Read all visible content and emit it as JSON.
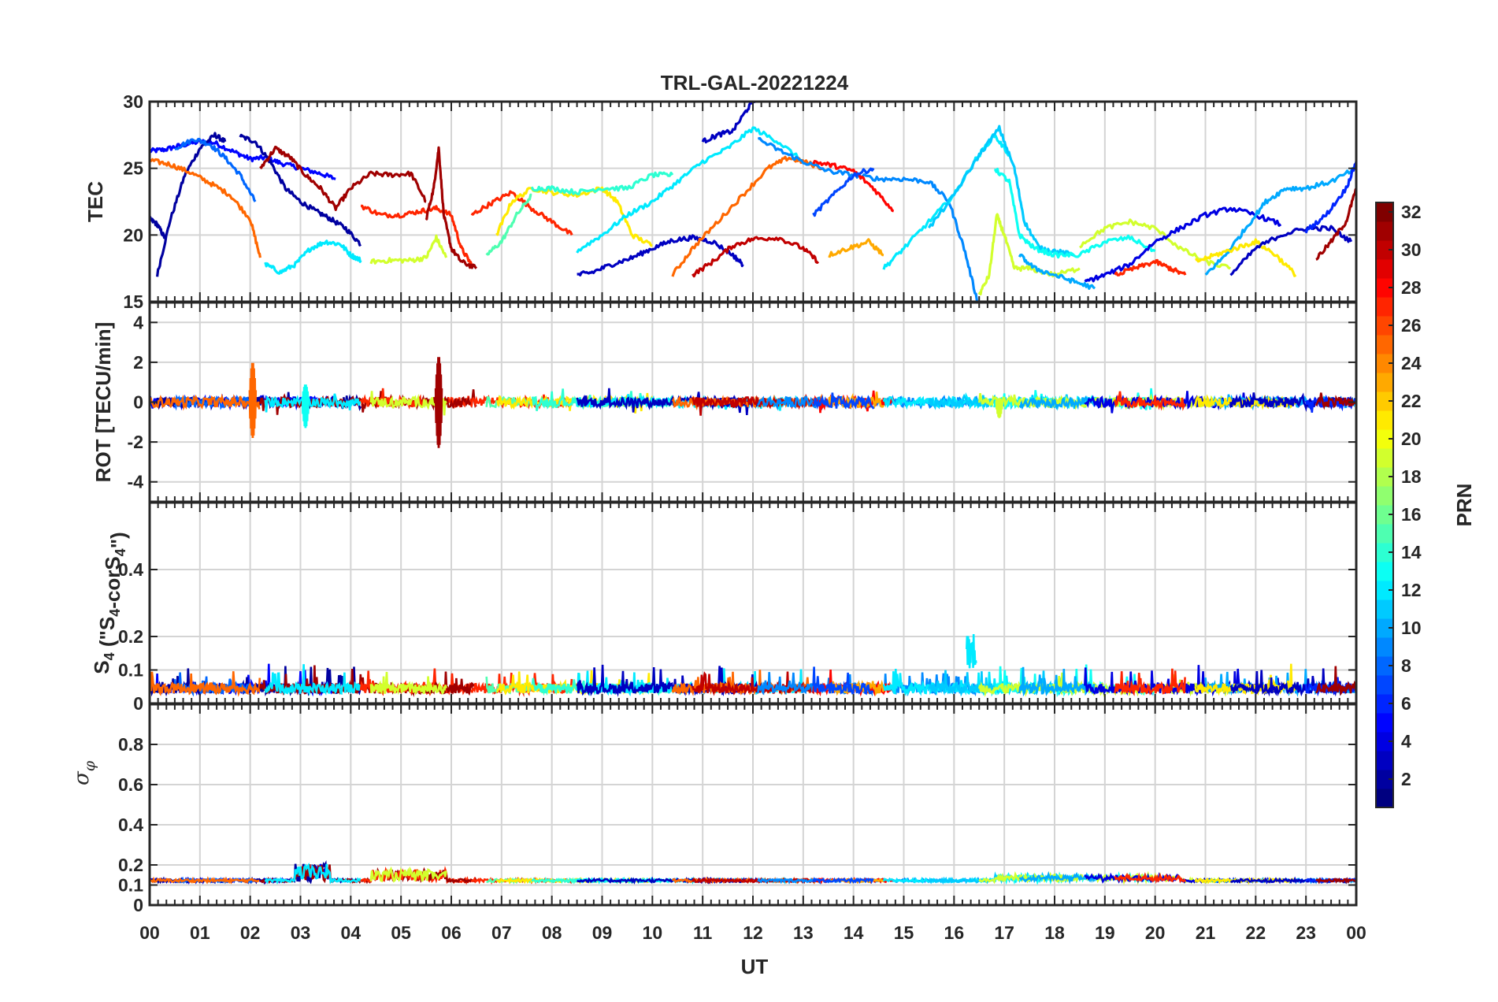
{
  "chart_data": {
    "type": "line",
    "title": "TRL-GAL-20221224",
    "xlabel": "UT",
    "x_ticks": [
      "00",
      "01",
      "02",
      "03",
      "04",
      "05",
      "06",
      "07",
      "08",
      "09",
      "10",
      "11",
      "12",
      "13",
      "14",
      "15",
      "16",
      "17",
      "18",
      "19",
      "20",
      "21",
      "22",
      "23",
      "00"
    ],
    "xlim": [
      0,
      24
    ],
    "colorbar": {
      "label": "PRN",
      "range": [
        1,
        32
      ],
      "ticks": [
        "2",
        "4",
        "6",
        "8",
        "10",
        "12",
        "14",
        "16",
        "18",
        "20",
        "22",
        "24",
        "26",
        "28",
        "30",
        "32"
      ],
      "colormap": "jet"
    },
    "panels": [
      {
        "name": "tec",
        "ylabel": "TEC",
        "ylim": [
          15,
          30
        ],
        "y_ticks": [
          15,
          20,
          25,
          30
        ],
        "series": [
          {
            "prn": 5,
            "x": [
              0.0,
              0.3,
              0.6,
              1.0,
              1.3,
              1.7,
              2.0,
              2.3,
              2.6,
              3.0,
              3.4,
              3.7
            ],
            "y": [
              26.3,
              26.4,
              26.7,
              27.0,
              26.9,
              26.2,
              25.7,
              25.8,
              25.4,
              25.0,
              24.6,
              24.2
            ]
          },
          {
            "prn": 2,
            "x": [
              0.15,
              0.4,
              0.7,
              1.0,
              1.3,
              1.5
            ],
            "y": [
              17.0,
              21.0,
              24.5,
              26.5,
              27.5,
              27.0
            ]
          },
          {
            "prn": 2,
            "x": [
              0.0,
              0.15,
              0.3
            ],
            "y": [
              21.2,
              20.8,
              19.8
            ]
          },
          {
            "prn": 2,
            "x": [
              1.8,
              2.1,
              2.4,
              2.7,
              3.0,
              3.3,
              3.6,
              3.9,
              4.2
            ],
            "y": [
              27.4,
              27.0,
              25.5,
              23.5,
              22.5,
              21.8,
              21.2,
              20.5,
              19.3
            ]
          },
          {
            "prn": 8,
            "x": [
              0.5,
              0.9,
              1.2,
              1.5,
              1.8,
              2.1
            ],
            "y": [
              26.5,
              27.2,
              26.8,
              25.8,
              24.5,
              22.5
            ]
          },
          {
            "prn": 25,
            "x": [
              0.0,
              0.4,
              0.8,
              1.2,
              1.6,
              2.0,
              2.2
            ],
            "y": [
              25.6,
              25.3,
              24.7,
              23.9,
              23.0,
              21.2,
              18.3
            ]
          },
          {
            "prn": 31,
            "x": [
              2.2,
              2.5,
              2.8,
              3.1,
              3.4,
              3.7,
              4.0,
              4.4,
              4.8,
              5.2,
              5.5
            ],
            "y": [
              25.0,
              26.5,
              25.8,
              24.5,
              23.5,
              22.0,
              23.5,
              24.6,
              24.5,
              24.6,
              22.5
            ]
          },
          {
            "prn": 12,
            "x": [
              2.3,
              2.6,
              2.9,
              3.2,
              3.5,
              3.8,
              4.0,
              4.2
            ],
            "y": [
              17.8,
              17.2,
              17.8,
              19.0,
              19.5,
              19.3,
              18.5,
              18.1
            ]
          },
          {
            "prn": 27,
            "x": [
              4.2,
              4.6,
              5.0,
              5.4,
              5.7,
              6.0,
              6.2,
              6.4
            ],
            "y": [
              22.2,
              21.5,
              21.5,
              21.8,
              22.0,
              21.5,
              19.0,
              17.8
            ]
          },
          {
            "prn": 31,
            "x": [
              5.5,
              5.65,
              5.75,
              5.85,
              6.0,
              6.2,
              6.5
            ],
            "y": [
              21.2,
              23.5,
              26.5,
              21.5,
              19.0,
              18.0,
              17.5
            ]
          },
          {
            "prn": 19,
            "x": [
              4.4,
              4.8,
              5.2,
              5.5,
              5.7,
              5.9
            ],
            "y": [
              18.0,
              18.1,
              18.1,
              18.3,
              19.8,
              18.3
            ]
          },
          {
            "prn": 27,
            "x": [
              6.4,
              6.8,
              7.2,
              7.6,
              8.0,
              8.4
            ],
            "y": [
              21.5,
              22.4,
              23.2,
              22.0,
              21.0,
              20.0
            ]
          },
          {
            "prn": 15,
            "x": [
              6.7,
              7.0,
              7.3,
              7.6
            ],
            "y": [
              18.5,
              19.5,
              21.5,
              23.0
            ]
          },
          {
            "prn": 21,
            "x": [
              6.9,
              7.2,
              7.6,
              8.0,
              8.5,
              9.0,
              9.3,
              9.6,
              10.0
            ],
            "y": [
              20.0,
              22.5,
              23.5,
              23.2,
              23.0,
              23.5,
              22.5,
              20.0,
              19.2
            ]
          },
          {
            "prn": 14,
            "x": [
              7.6,
              8.0,
              8.5,
              9.0,
              9.5,
              10.0,
              10.4
            ],
            "y": [
              23.5,
              23.5,
              23.2,
              23.5,
              23.5,
              24.5,
              24.5
            ]
          },
          {
            "prn": 12,
            "x": [
              8.5,
              9.0,
              9.5,
              10.0,
              10.5,
              11.0,
              11.5,
              12.0,
              12.5,
              13.0
            ],
            "y": [
              18.8,
              20.0,
              21.5,
              22.5,
              24.0,
              25.5,
              26.5,
              28.0,
              27.0,
              25.5
            ]
          },
          {
            "prn": 3,
            "x": [
              8.5,
              8.8,
              9.2,
              9.6,
              10.0,
              10.4,
              10.8,
              11.2,
              11.6,
              11.8
            ],
            "y": [
              17.0,
              17.2,
              17.8,
              18.3,
              19.0,
              19.6,
              19.8,
              19.5,
              18.5,
              17.8
            ]
          },
          {
            "prn": 3,
            "x": [
              11.0,
              11.3,
              11.6,
              11.9,
              12.1
            ],
            "y": [
              27.0,
              27.5,
              27.8,
              29.5,
              30.5
            ]
          },
          {
            "prn": 25,
            "x": [
              10.4,
              10.8,
              11.3,
              11.8,
              12.3,
              12.7,
              13.0,
              13.4
            ],
            "y": [
              17.0,
              19.0,
              21.0,
              23.0,
              25.0,
              25.8,
              25.5,
              25.0
            ]
          },
          {
            "prn": 30,
            "x": [
              10.8,
              11.2,
              11.6,
              12.0,
              12.5,
              13.0,
              13.3
            ],
            "y": [
              17.0,
              18.0,
              19.2,
              19.7,
              19.8,
              19.0,
              18.0
            ]
          },
          {
            "prn": 9,
            "x": [
              12.1,
              12.6,
              13.0,
              13.5,
              14.0,
              14.5,
              15.0,
              15.5,
              15.9,
              16.2,
              16.5
            ],
            "y": [
              27.2,
              26.2,
              25.5,
              24.8,
              24.5,
              24.2,
              24.2,
              24.0,
              22.5,
              19.0,
              14.5
            ]
          },
          {
            "prn": 28,
            "x": [
              13.2,
              13.6,
              14.0,
              14.4,
              14.8
            ],
            "y": [
              25.5,
              25.2,
              24.8,
              23.5,
              21.8
            ]
          },
          {
            "prn": 23,
            "x": [
              13.5,
              13.9,
              14.3,
              14.6
            ],
            "y": [
              18.5,
              19.0,
              19.5,
              18.5
            ]
          },
          {
            "prn": 7,
            "x": [
              13.2,
              13.6,
              14.0,
              14.4
            ],
            "y": [
              21.5,
              23.0,
              24.5,
              25.0
            ]
          },
          {
            "prn": 12,
            "x": [
              14.6,
              15.0,
              15.5,
              16.0,
              16.4,
              16.8,
              17.1
            ],
            "y": [
              17.5,
              19.0,
              21.0,
              23.0,
              25.5,
              27.5,
              26.0
            ]
          },
          {
            "prn": 11,
            "x": [
              15.5,
              16.0,
              16.5,
              16.9,
              17.2,
              17.4,
              17.7,
              18.0,
              18.4
            ],
            "y": [
              20.5,
              23.0,
              26.0,
              28.0,
              25.0,
              21.0,
              19.0,
              18.8,
              18.5
            ]
          },
          {
            "prn": 13,
            "x": [
              16.8,
              17.1,
              17.3,
              17.6,
              18.0,
              18.5,
              19.0,
              19.5,
              20.0
            ],
            "y": [
              25.0,
              24.0,
              20.0,
              19.0,
              18.5,
              18.5,
              19.5,
              19.8,
              18.8
            ]
          },
          {
            "prn": 19,
            "x": [
              16.5,
              16.7,
              16.85,
              17.0,
              17.2,
              17.5,
              18.0,
              18.5
            ],
            "y": [
              15.5,
              17.0,
              21.5,
              20.0,
              17.5,
              17.5,
              17.0,
              17.5
            ]
          },
          {
            "prn": 19,
            "x": [
              18.5,
              19.0,
              19.5,
              20.0,
              20.5,
              21.0,
              21.5
            ],
            "y": [
              19.2,
              20.5,
              21.0,
              20.5,
              19.0,
              18.0,
              17.5
            ]
          },
          {
            "prn": 10,
            "x": [
              17.3,
              17.6,
              18.0,
              18.4,
              18.8
            ],
            "y": [
              18.5,
              17.5,
              17.0,
              16.5,
              16.0
            ]
          },
          {
            "prn": 4,
            "x": [
              18.6,
              19.0,
              19.5,
              20.0,
              20.5,
              21.0,
              21.5,
              22.0,
              22.5
            ],
            "y": [
              16.5,
              17.0,
              17.8,
              19.5,
              20.5,
              21.5,
              22.0,
              21.5,
              20.8
            ]
          },
          {
            "prn": 27,
            "x": [
              19.2,
              19.6,
              20.0,
              20.3,
              20.6
            ],
            "y": [
              17.0,
              17.5,
              18.0,
              17.5,
              17.0
            ]
          },
          {
            "prn": 10,
            "x": [
              21.0,
              21.4,
              21.8,
              22.2,
              22.6,
              23.0,
              23.5,
              24.0
            ],
            "y": [
              17.0,
              18.5,
              20.5,
              22.5,
              23.5,
              23.5,
              24.0,
              25.0
            ]
          },
          {
            "prn": 21,
            "x": [
              20.8,
              21.2,
              21.6,
              22.0,
              22.4,
              22.8
            ],
            "y": [
              18.0,
              18.5,
              19.0,
              19.5,
              18.5,
              17.0
            ]
          },
          {
            "prn": 3,
            "x": [
              21.5,
              22.0,
              22.5,
              23.0,
              23.5,
              23.9
            ],
            "y": [
              17.0,
              19.0,
              20.0,
              20.5,
              20.5,
              19.5
            ]
          },
          {
            "prn": 6,
            "x": [
              23.0,
              23.4,
              23.8,
              24.0
            ],
            "y": [
              20.3,
              21.5,
              23.5,
              25.5
            ]
          },
          {
            "prn": 31,
            "x": [
              23.2,
              23.5,
              23.8,
              24.0
            ],
            "y": [
              18.2,
              19.5,
              21.0,
              23.5
            ]
          }
        ]
      },
      {
        "name": "rot",
        "ylabel": "ROT [TECU/min]",
        "ylim": [
          -5,
          5
        ],
        "y_ticks": [
          -4,
          -2,
          0,
          2,
          4
        ],
        "notes": "Values mostly within ±0.5; spikes near 02:05 (±2), 03:00 (±1) and 05:45 (±2.3)",
        "spikes": [
          {
            "x": 2.05,
            "y_max": 2.0,
            "y_min": -1.8,
            "prn": 25
          },
          {
            "x": 3.1,
            "y_max": 0.9,
            "y_min": -1.3,
            "prn": 13
          },
          {
            "x": 5.75,
            "y_max": 2.3,
            "y_min": -2.3,
            "prn": 31
          },
          {
            "x": 16.9,
            "y_max": 0.2,
            "y_min": -0.8,
            "prn": 19
          }
        ]
      },
      {
        "name": "s4",
        "ylabel": "S4 (\"S4-corS4\")",
        "ylim": [
          0,
          0.6
        ],
        "y_ticks": [
          0,
          0.1,
          0.2,
          0.4
        ],
        "notes": "Background 0.02–0.1; peak about 0.21 near 16:20 (PRN 12)"
      },
      {
        "name": "sigma_phi",
        "ylabel": "σφ",
        "ylim": [
          0,
          1.0
        ],
        "y_ticks": [
          0,
          0.1,
          0.2,
          0.4,
          0.6,
          0.8
        ],
        "notes": "Baseline about 0.12 with bumps to about 0.2 near 03:00 and 05:30"
      }
    ]
  },
  "ui": {
    "tick_labels": {
      "tec": [
        "15",
        "20",
        "25",
        "30"
      ],
      "rot": [
        "-4",
        "-2",
        "0",
        "2",
        "4"
      ],
      "s4": [
        "0",
        "0.1",
        "0.2",
        "0.4"
      ],
      "sigma": [
        "0",
        "0.1",
        "0.2",
        "0.4",
        "0.6",
        "0.8"
      ]
    },
    "s4_label": {
      "main": "S",
      "sub": "4",
      "mid": " (\"S",
      "sub2": "4",
      "mid2": "-corS",
      "sub3": "4",
      "end": "\")"
    },
    "sigma_label": {
      "main": "σ",
      "sub": "φ"
    }
  }
}
